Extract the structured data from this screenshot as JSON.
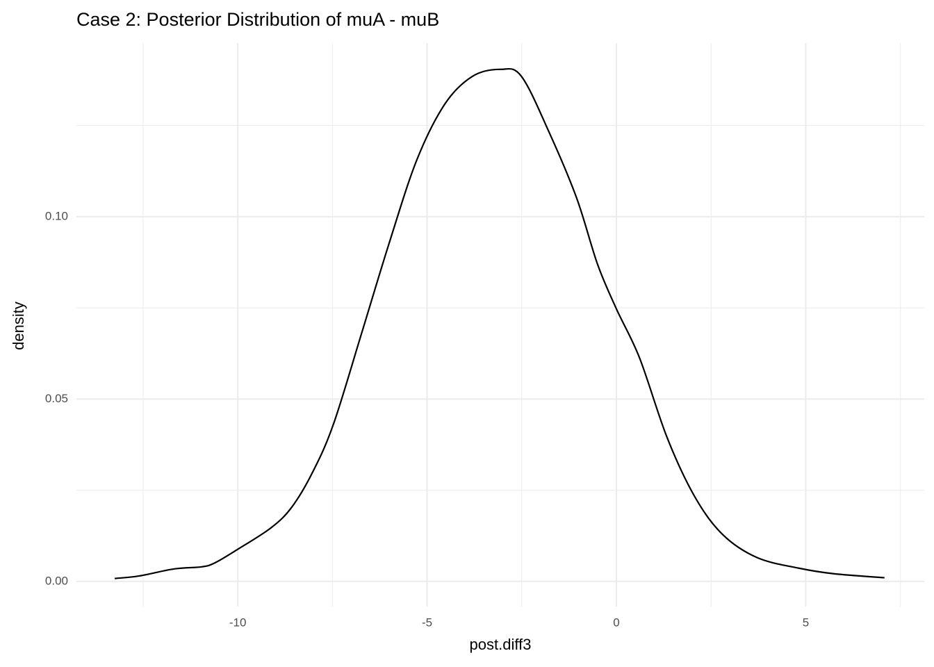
{
  "chart_data": {
    "type": "density",
    "title": "Case 2: Posterior Distribution of muA - muB",
    "x_label": "post.diff3",
    "y_label": "density",
    "x": [
      -13.25,
      -12.6,
      -11.69,
      -10.95,
      -10.6,
      -10,
      -9.12,
      -8.57,
      -8.02,
      -7.47,
      -6.73,
      -6.0,
      -5.27,
      -4.53,
      -3.8,
      -3.06,
      -2.51,
      -1.78,
      -1.05,
      -0.5,
      0,
      0.61,
      1.34,
      2.07,
      2.81,
      3.72,
      4.83,
      5.74,
      7.08
    ],
    "values": [
      0.0008,
      0.0015,
      0.0034,
      0.004,
      0.0051,
      0.0088,
      0.0147,
      0.0204,
      0.03,
      0.0432,
      0.068,
      0.0928,
      0.1156,
      0.1309,
      0.1385,
      0.1404,
      0.1385,
      0.1232,
      0.1051,
      0.087,
      0.0747,
      0.0613,
      0.0394,
      0.0232,
      0.0128,
      0.0065,
      0.0036,
      0.0021,
      0.001
    ],
    "color": "#000000",
    "xlim": [
      -14.26,
      8.13
    ],
    "ylim": [
      -0.0069,
      0.1476
    ],
    "xticks": [
      -10,
      -5,
      0,
      5
    ],
    "yticks": [
      {
        "value": 0,
        "label": "0.00"
      },
      {
        "value": 0.05,
        "label": "0.05"
      },
      {
        "value": 0.1,
        "label": "0.10"
      }
    ],
    "x_minor_ticks": [
      -12.5,
      -7.5,
      -2.5,
      2.5,
      7.5
    ],
    "y_minor_ticks": [
      0.025,
      0.075,
      0.125
    ],
    "grid": true
  }
}
